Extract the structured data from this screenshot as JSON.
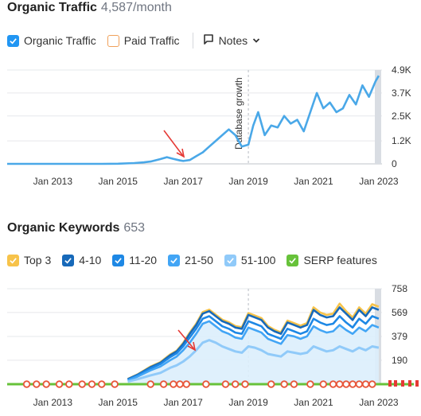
{
  "traffic": {
    "title": "Organic Traffic",
    "subtitle": "4,587/month",
    "legend": [
      {
        "label": "Organic Traffic",
        "checked": true,
        "color": "#2196f3"
      },
      {
        "label": "Paid Traffic",
        "checked": false,
        "color": "#f0a05a"
      }
    ],
    "notes_label": "Notes",
    "annotation": "Database growth"
  },
  "keywords": {
    "title": "Organic Keywords",
    "subtitle": "653",
    "legend": [
      {
        "label": "Top 3",
        "color": "#f7c34a"
      },
      {
        "label": "4-10",
        "color": "#1769b9"
      },
      {
        "label": "11-20",
        "color": "#1e88e5"
      },
      {
        "label": "21-50",
        "color": "#42a5f5"
      },
      {
        "label": "51-100",
        "color": "#90caf9"
      },
      {
        "label": "SERP features",
        "color": "#67c23a"
      }
    ]
  },
  "chart_data": [
    {
      "type": "line",
      "x_ticks": [
        "Jan 2013",
        "Jan 2015",
        "Jan 2017",
        "Jan 2019",
        "Jan 2021",
        "Jan 2023"
      ],
      "y_ticks": [
        "0",
        "1.2K",
        "2.5K",
        "3.7K",
        "4.9K"
      ],
      "xlim": [
        2011.6,
        2023.1
      ],
      "ylim": [
        0,
        4900
      ],
      "grid": true,
      "annotation_x": 2019.0,
      "series": [
        {
          "name": "Organic Traffic",
          "color": "#4aa8e8",
          "x": [
            2011.6,
            2012.0,
            2012.5,
            2013.0,
            2013.5,
            2014.0,
            2014.5,
            2015.0,
            2015.5,
            2015.8,
            2016.0,
            2016.3,
            2016.5,
            2016.7,
            2016.9,
            2017.0,
            2017.2,
            2017.4,
            2017.6,
            2017.8,
            2018.0,
            2018.2,
            2018.4,
            2018.6,
            2018.8,
            2019.0,
            2019.15,
            2019.3,
            2019.5,
            2019.7,
            2019.9,
            2020.1,
            2020.3,
            2020.5,
            2020.7,
            2020.9,
            2021.1,
            2021.3,
            2021.5,
            2021.7,
            2021.9,
            2022.1,
            2022.3,
            2022.5,
            2022.7,
            2022.9,
            2023.0
          ],
          "y": [
            0,
            0,
            0,
            0,
            0,
            0,
            0,
            10,
            40,
            80,
            120,
            250,
            350,
            260,
            180,
            150,
            200,
            400,
            600,
            900,
            1200,
            1500,
            1800,
            1500,
            900,
            1000,
            2000,
            2700,
            1500,
            2000,
            1900,
            2500,
            2100,
            2300,
            1700,
            2700,
            3700,
            2900,
            3200,
            2700,
            2900,
            3600,
            3100,
            4100,
            3500,
            4300,
            4600
          ]
        }
      ]
    },
    {
      "type": "area",
      "x_ticks": [
        "Jan 2013",
        "Jan 2015",
        "Jan 2017",
        "Jan 2019",
        "Jan 2021",
        "Jan 2023"
      ],
      "y_ticks": [
        "190",
        "379",
        "569",
        "758"
      ],
      "xlim": [
        2011.6,
        2023.1
      ],
      "ylim": [
        0,
        758
      ],
      "grid": true,
      "x": [
        2015.3,
        2015.6,
        2016.0,
        2016.3,
        2016.6,
        2016.8,
        2017.0,
        2017.2,
        2017.4,
        2017.6,
        2017.8,
        2018.0,
        2018.2,
        2018.4,
        2018.6,
        2018.8,
        2019.0,
        2019.2,
        2019.4,
        2019.6,
        2019.8,
        2020.0,
        2020.2,
        2020.4,
        2020.6,
        2020.8,
        2021.0,
        2021.2,
        2021.4,
        2021.6,
        2021.8,
        2022.0,
        2022.2,
        2022.4,
        2022.6,
        2022.8,
        2023.0
      ],
      "series": [
        {
          "name": "51-100",
          "color": "#90caf9",
          "values": [
            20,
            40,
            70,
            90,
            130,
            150,
            180,
            220,
            270,
            330,
            350,
            330,
            300,
            280,
            260,
            250,
            300,
            290,
            270,
            240,
            230,
            220,
            260,
            250,
            240,
            250,
            300,
            280,
            260,
            270,
            300,
            280,
            260,
            290,
            270,
            300,
            290
          ]
        },
        {
          "name": "21-50",
          "color": "#42a5f5",
          "values": [
            30,
            60,
            110,
            140,
            190,
            220,
            270,
            330,
            400,
            480,
            500,
            460,
            420,
            400,
            370,
            360,
            450,
            430,
            410,
            360,
            340,
            320,
            390,
            380,
            360,
            380,
            460,
            430,
            410,
            420,
            470,
            430,
            400,
            450,
            420,
            470,
            450
          ]
        },
        {
          "name": "11-20",
          "color": "#1e88e5",
          "values": [
            35,
            70,
            125,
            160,
            215,
            245,
            300,
            370,
            440,
            520,
            540,
            500,
            460,
            440,
            410,
            400,
            500,
            480,
            460,
            400,
            380,
            360,
            440,
            420,
            400,
            420,
            520,
            490,
            470,
            480,
            540,
            490,
            450,
            520,
            480,
            540,
            520
          ]
        },
        {
          "name": "4-10",
          "color": "#1769b9",
          "values": [
            40,
            75,
            135,
            170,
            230,
            260,
            320,
            400,
            470,
            560,
            580,
            540,
            500,
            480,
            450,
            440,
            550,
            530,
            510,
            450,
            420,
            400,
            490,
            470,
            450,
            470,
            590,
            550,
            530,
            540,
            610,
            560,
            510,
            590,
            540,
            610,
            590
          ]
        },
        {
          "name": "Top 3",
          "color": "#f7c34a",
          "values": [
            42,
            78,
            140,
            175,
            236,
            266,
            328,
            410,
            480,
            572,
            592,
            552,
            512,
            492,
            462,
            452,
            565,
            545,
            525,
            462,
            432,
            412,
            505,
            485,
            465,
            485,
            610,
            570,
            550,
            560,
            640,
            580,
            530,
            610,
            560,
            635,
            615
          ]
        }
      ],
      "serp_label": "G"
    }
  ]
}
